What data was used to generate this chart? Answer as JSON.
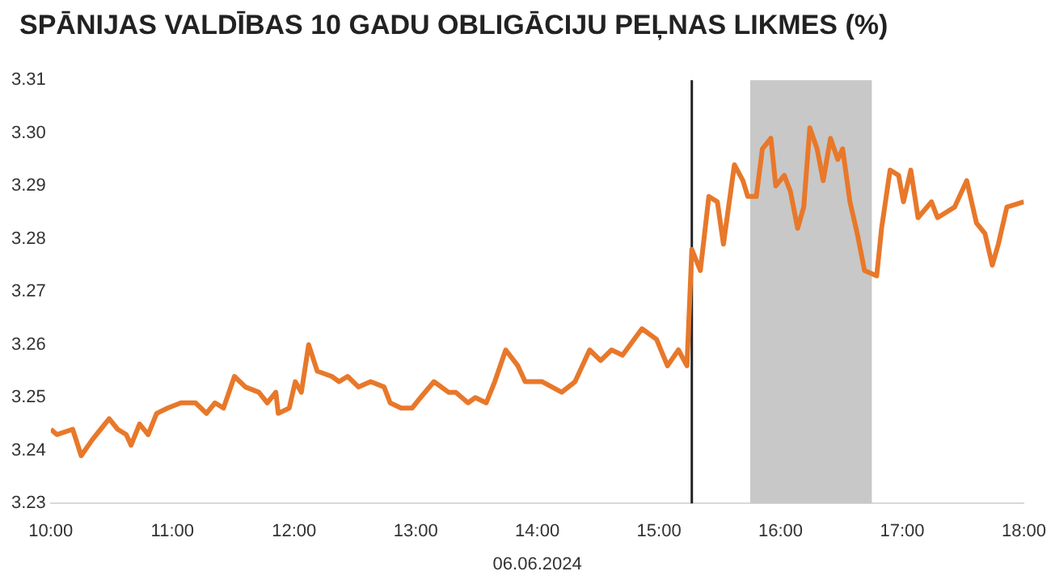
{
  "chart_data": {
    "type": "line",
    "title": "SPĀNIJAS VALDĪBAS 10 GADU OBLIGĀCIJU PEĻNAS LIKMES (%)",
    "xlabel": "06.06.2024",
    "series": [
      {
        "color": "#e8782a",
        "x": [
          10.0,
          10.05,
          10.18,
          10.25,
          10.34,
          10.41,
          10.48,
          10.55,
          10.62,
          10.66,
          10.73,
          10.8,
          10.87,
          10.96,
          11.07,
          11.19,
          11.28,
          11.35,
          11.42,
          11.51,
          11.6,
          11.71,
          11.78,
          11.85,
          11.87,
          11.96,
          12.01,
          12.06,
          12.12,
          12.19,
          12.31,
          12.37,
          12.44,
          12.53,
          12.63,
          12.74,
          12.79,
          12.88,
          12.97,
          13.04,
          13.15,
          13.27,
          13.33,
          13.43,
          13.49,
          13.58,
          13.65,
          13.74,
          13.84,
          13.9,
          14.04,
          14.2,
          14.31,
          14.43,
          14.52,
          14.61,
          14.7,
          14.86,
          14.98,
          15.07,
          15.16,
          15.23,
          15.27,
          15.34,
          15.41,
          15.48,
          15.53,
          15.62,
          15.69,
          15.73,
          15.8,
          15.85,
          15.92,
          15.96,
          16.03,
          16.08,
          16.14,
          16.19,
          16.24,
          16.3,
          16.35,
          16.41,
          16.47,
          16.51,
          16.57,
          16.63,
          16.69,
          16.79,
          16.83,
          16.9,
          16.97,
          17.01,
          17.07,
          17.13,
          17.24,
          17.29,
          17.43,
          17.53,
          17.61,
          17.68,
          17.74,
          17.79,
          17.86,
          18.0
        ],
        "values": [
          3.244,
          3.243,
          3.244,
          3.239,
          3.242,
          3.244,
          3.246,
          3.244,
          3.243,
          3.241,
          3.245,
          3.243,
          3.247,
          3.248,
          3.249,
          3.249,
          3.247,
          3.249,
          3.248,
          3.254,
          3.252,
          3.251,
          3.249,
          3.251,
          3.247,
          3.248,
          3.253,
          3.251,
          3.26,
          3.255,
          3.254,
          3.253,
          3.254,
          3.252,
          3.253,
          3.252,
          3.249,
          3.248,
          3.248,
          3.25,
          3.253,
          3.251,
          3.251,
          3.249,
          3.25,
          3.249,
          3.253,
          3.259,
          3.256,
          3.253,
          3.253,
          3.251,
          3.253,
          3.259,
          3.257,
          3.259,
          3.258,
          3.263,
          3.261,
          3.256,
          3.259,
          3.256,
          3.278,
          3.274,
          3.288,
          3.287,
          3.279,
          3.294,
          3.291,
          3.288,
          3.288,
          3.297,
          3.299,
          3.29,
          3.292,
          3.289,
          3.282,
          3.286,
          3.301,
          3.297,
          3.291,
          3.299,
          3.295,
          3.297,
          3.287,
          3.281,
          3.274,
          3.273,
          3.282,
          3.293,
          3.292,
          3.287,
          3.293,
          3.284,
          3.287,
          3.284,
          3.286,
          3.291,
          3.283,
          3.281,
          3.275,
          3.279,
          3.286,
          3.287
        ]
      }
    ],
    "xlim": [
      10,
      18
    ],
    "xticks": [
      {
        "value": 10,
        "label": "10:00"
      },
      {
        "value": 11,
        "label": "11:00"
      },
      {
        "value": 12,
        "label": "12:00"
      },
      {
        "value": 13,
        "label": "13:00"
      },
      {
        "value": 14,
        "label": "14:00"
      },
      {
        "value": 15,
        "label": "15:00"
      },
      {
        "value": 16,
        "label": "16:00"
      },
      {
        "value": 17,
        "label": "17:00"
      },
      {
        "value": 18,
        "label": "18:00"
      }
    ],
    "ylim": [
      3.23,
      3.31
    ],
    "yticks": [
      3.23,
      3.24,
      3.25,
      3.26,
      3.27,
      3.28,
      3.29,
      {
        "value": 3.3,
        "label": "3.30"
      },
      3.31
    ],
    "ref_lines": [
      {
        "axis": "x",
        "value": 15.27,
        "color": "#222222"
      }
    ],
    "bands": [
      {
        "axis": "x",
        "from": 15.75,
        "to": 16.75,
        "color": "#c8c8c8"
      }
    ],
    "grid": false,
    "legend": false,
    "marker": "none",
    "line_style": "solid"
  }
}
